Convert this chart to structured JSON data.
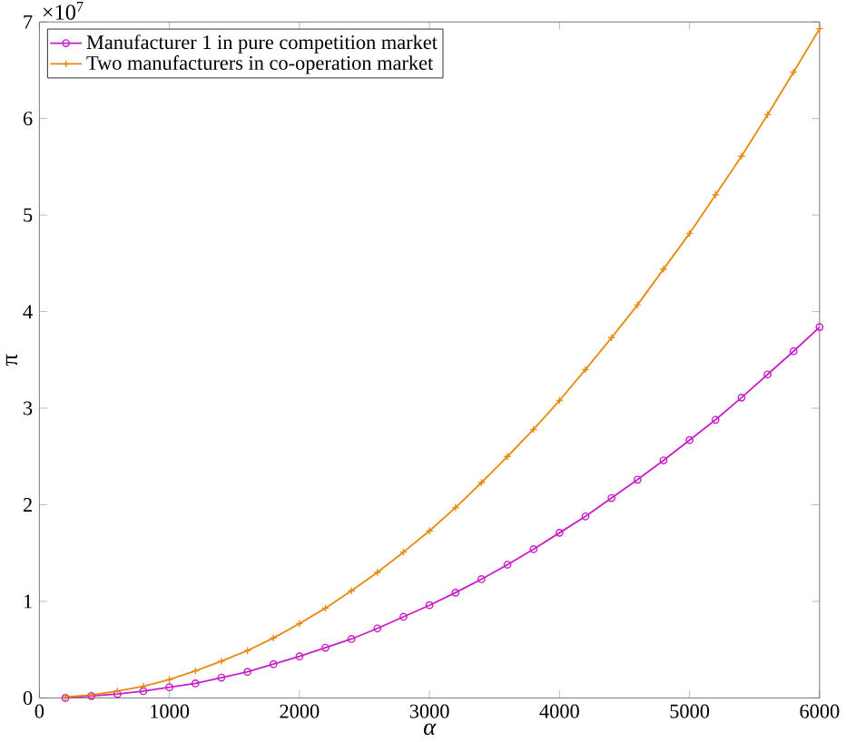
{
  "chart_data": {
    "type": "line",
    "xlabel": "α",
    "ylabel": "π",
    "x": [
      200,
      400,
      600,
      800,
      1000,
      1200,
      1400,
      1600,
      1800,
      2000,
      2200,
      2400,
      2600,
      2800,
      3000,
      3200,
      3400,
      3600,
      3800,
      4000,
      4200,
      4400,
      4600,
      4800,
      5000,
      5200,
      5400,
      5600,
      5800,
      6000
    ],
    "series": [
      {
        "name": "Manufacturer 1 in pure competition market",
        "color": "#c81ec8",
        "marker": "circle",
        "values": [
          0.0,
          0.02,
          0.04,
          0.07,
          0.11,
          0.15,
          0.21,
          0.27,
          0.35,
          0.43,
          0.52,
          0.61,
          0.72,
          0.84,
          0.96,
          1.09,
          1.23,
          1.38,
          1.54,
          1.71,
          1.88,
          2.07,
          2.26,
          2.46,
          2.67,
          2.88,
          3.11,
          3.35,
          3.59,
          3.84
        ]
      },
      {
        "name": "Two manufacturers in co-operation market",
        "color": "#e88a10",
        "marker": "cross",
        "values": [
          0.01,
          0.03,
          0.07,
          0.12,
          0.19,
          0.28,
          0.38,
          0.49,
          0.62,
          0.77,
          0.93,
          1.11,
          1.3,
          1.51,
          1.73,
          1.97,
          2.23,
          2.5,
          2.78,
          3.08,
          3.4,
          3.73,
          4.07,
          4.44,
          4.81,
          5.21,
          5.61,
          6.04,
          6.48,
          6.93
        ]
      }
    ],
    "xlim": [
      0,
      6000
    ],
    "xticks": [
      0,
      1000,
      2000,
      3000,
      4000,
      5000,
      6000
    ],
    "ylim": [
      0,
      7
    ],
    "yticks": [
      0,
      1,
      2,
      3,
      4,
      5,
      6,
      7
    ],
    "annotations": [
      "×10$^{7}$"
    ],
    "legend": "top left",
    "grid": false,
    "line_style": "solid"
  }
}
